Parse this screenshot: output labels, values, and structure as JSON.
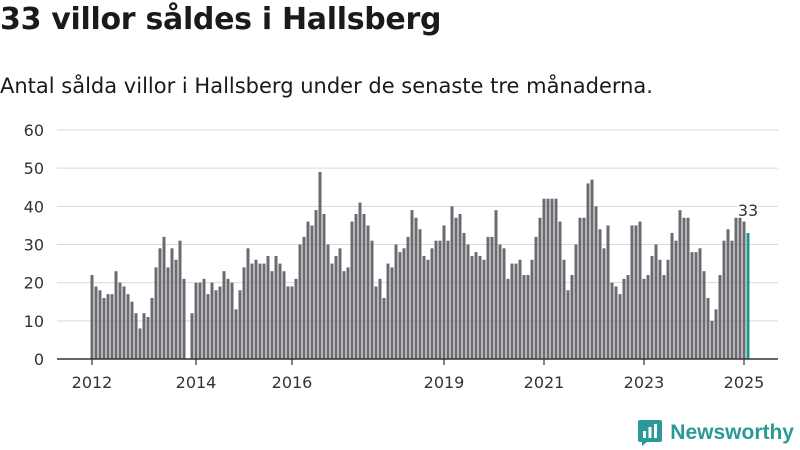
{
  "title": "33 villor såldes i Hallsberg",
  "subtitle": "Antal sålda villor i Hallsberg under de senaste tre månaderna.",
  "brand": "Newsworthy",
  "colors": {
    "bar": "#6b6a70",
    "highlight": "#1f9593",
    "grid": "#d9d9d9",
    "axis": "#333333",
    "brand": "#2a9a97"
  },
  "chart_data": {
    "type": "bar",
    "title": "33 villor såldes i Hallsberg",
    "subtitle": "Antal sålda villor i Hallsberg under de senaste tre månaderna.",
    "xlabel": "",
    "ylabel": "",
    "ylim": [
      0,
      60
    ],
    "y_ticks": [
      0,
      10,
      20,
      30,
      40,
      50,
      60
    ],
    "x_tick_labels": [
      {
        "label": "2012",
        "index": 0
      },
      {
        "label": "2014",
        "index": 26
      },
      {
        "label": "2016",
        "index": 50
      },
      {
        "label": "2019",
        "index": 88
      },
      {
        "label": "2021",
        "index": 113
      },
      {
        "label": "2023",
        "index": 138
      },
      {
        "label": "2025",
        "index": 163
      }
    ],
    "grid": true,
    "highlight_label": "33",
    "values": [
      22,
      19,
      18,
      16,
      17,
      17,
      23,
      20,
      19,
      17,
      15,
      12,
      8,
      12,
      11,
      16,
      24,
      29,
      32,
      24,
      29,
      26,
      31,
      21,
      null,
      12,
      20,
      20,
      21,
      17,
      20,
      18,
      19,
      23,
      21,
      20,
      13,
      18,
      24,
      29,
      25,
      26,
      25,
      25,
      27,
      23,
      27,
      25,
      23,
      19,
      19,
      21,
      30,
      32,
      36,
      35,
      39,
      49,
      38,
      30,
      25,
      27,
      29,
      23,
      24,
      36,
      38,
      41,
      38,
      35,
      31,
      19,
      21,
      16,
      25,
      24,
      30,
      28,
      29,
      32,
      39,
      37,
      34,
      27,
      26,
      29,
      31,
      31,
      35,
      31,
      40,
      37,
      38,
      33,
      30,
      27,
      28,
      27,
      26,
      32,
      32,
      39,
      30,
      29,
      21,
      25,
      25,
      26,
      22,
      22,
      26,
      32,
      37,
      42,
      42,
      42,
      42,
      36,
      26,
      18,
      22,
      30,
      37,
      37,
      46,
      47,
      40,
      34,
      29,
      35,
      20,
      19,
      17,
      21,
      22,
      35,
      35,
      36,
      21,
      22,
      27,
      30,
      26,
      22,
      26,
      33,
      31,
      39,
      37,
      37,
      28,
      28,
      29,
      23,
      16,
      10,
      13,
      22,
      31,
      34,
      31,
      37,
      37,
      36,
      33
    ]
  }
}
